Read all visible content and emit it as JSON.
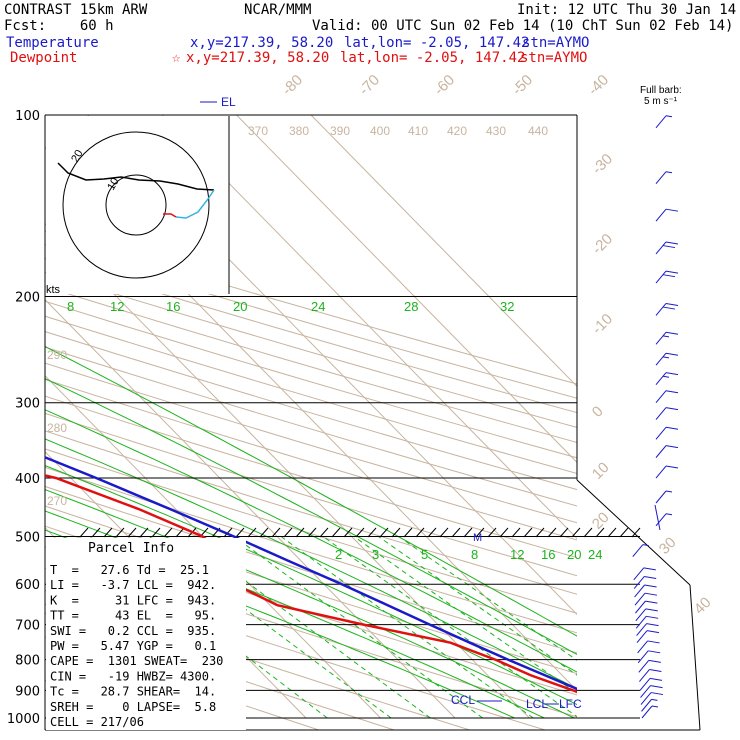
{
  "header": {
    "line1_left": "CONTRAST 15km ARW",
    "line1_center": "NCAR/MMM",
    "line1_right": "Init: 12 UTC Thu 30 Jan 14",
    "line2_left": "Fcst:    60 h",
    "line2_right": "Valid: 00 UTC Sun 02 Feb 14 (10 ChT Sun 02 Feb 14)",
    "temp_label": "Temperature",
    "temp_xy": "x,y=217.39, 58.20",
    "temp_latlon": "lat,lon= -2.05, 147.42",
    "temp_stn": "stn=AYMO",
    "dew_label": "Dewpoint",
    "dew_xy": "x,y=217.39, 58.20",
    "dew_latlon": "lat,lon= -2.05, 147.42",
    "dew_stn": "stn=AYMO"
  },
  "colors": {
    "temperature": "#1a1ac8",
    "dewpoint": "#e01010",
    "isotherm": "#c8b4a0",
    "mixing_ratio": "#1cb41c",
    "wind": "#1a1ac8"
  },
  "barb_legend": {
    "line1": "Full barb:",
    "line2": "5 m s⁻¹"
  },
  "hodograph": {
    "units_label": "kts",
    "ring_labels": [
      "20",
      "10"
    ]
  },
  "levels_labels": {
    "el": "EL",
    "ccl": "CCL",
    "lcl": "LCL",
    "lfc": "LFC",
    "m": "M"
  },
  "parcel_info": {
    "title": "Parcel Info",
    "rows": [
      "T  =   27.6 Td =  25.1",
      "LI =   -3.7 LCL =  942.",
      "K  =     31 LFC =  943.",
      "TT =     43 EL  =   95.",
      "SWI =   0.2 CCL =  935.",
      "PW =   5.47 YGP =   0.1",
      "CAPE =  1301 SWEAT=  230",
      "CIN =   -19 HWBZ= 4300.",
      "Tc =   28.7 SHEAR=  14.",
      "SREH =    0 LAPSE=  5.8",
      "CELL = 217/06"
    ]
  },
  "chart_data": {
    "type": "line",
    "subtype": "skew-T log-P",
    "pressure_levels": [
      100,
      200,
      300,
      400,
      500,
      600,
      700,
      800,
      900,
      1000
    ],
    "isotherm_labels": [
      -80,
      -70,
      -60,
      -50,
      -40,
      -30,
      -20,
      -10,
      0,
      10,
      20,
      30,
      40
    ],
    "mixing_ratio_upper_labels": [
      8,
      12,
      16,
      20,
      24,
      28,
      32
    ],
    "mixing_ratio_lower_labels": [
      2,
      3,
      5,
      8,
      12,
      16,
      20,
      24
    ],
    "theta_labels": [
      290,
      280,
      270
    ],
    "theta_e_labels": [
      370,
      380,
      390,
      400,
      410,
      420,
      430,
      440
    ],
    "series": [
      {
        "name": "Temperature",
        "p": [
          1000,
          975,
          950,
          925,
          900,
          850,
          800,
          750,
          700,
          650,
          600,
          550,
          500,
          450,
          400,
          350,
          300,
          250,
          200,
          150,
          100
        ],
        "t": [
          28.2,
          25.1,
          23.6,
          22.0,
          20.5,
          17.7,
          14.8,
          11.9,
          8.9,
          5.8,
          2.4,
          -1.6,
          -5.8,
          -10.8,
          -16.6,
          -23.6,
          -32.0,
          -42.0,
          -54.0,
          -70.0,
          -86.0
        ]
      },
      {
        "name": "Dewpoint",
        "p": [
          1000,
          975,
          950,
          925,
          900,
          850,
          800,
          750,
          700,
          650,
          600,
          550,
          500,
          450,
          400,
          370,
          350,
          330,
          300,
          250,
          200,
          150,
          110,
          100
        ],
        "t": [
          25.3,
          24.8,
          22.6,
          21.0,
          19.5,
          15.8,
          13.1,
          9.3,
          0.0,
          -9.0,
          -12.0,
          -9.0,
          -10.0,
          -15.0,
          -22.0,
          -31.0,
          -35.0,
          -35.0,
          -36.0,
          -45.0,
          -56.0,
          -72.0,
          -86.0,
          -84.0
        ]
      }
    ],
    "wind_barbs": {
      "p": [
        105,
        130,
        150,
        170,
        190,
        215,
        240,
        260,
        280,
        300,
        320,
        345,
        370,
        400,
        440,
        480,
        540,
        590,
        610,
        630,
        650,
        670,
        690,
        710,
        730,
        750,
        780,
        810,
        840,
        870,
        900,
        925,
        950,
        975,
        1000
      ],
      "speed_ms": [
        5,
        5,
        10,
        20,
        20,
        20,
        15,
        15,
        15,
        10,
        10,
        10,
        10,
        10,
        5,
        5,
        5,
        10,
        10,
        10,
        10,
        10,
        10,
        10,
        10,
        10,
        10,
        10,
        10,
        10,
        10,
        10,
        10,
        5,
        5
      ],
      "dir_deg": [
        60,
        60,
        80,
        90,
        90,
        90,
        90,
        95,
        100,
        100,
        105,
        110,
        115,
        120,
        130,
        150,
        180,
        95,
        95,
        95,
        95,
        95,
        95,
        95,
        95,
        100,
        100,
        100,
        100,
        100,
        100,
        105,
        105,
        110,
        110
      ]
    }
  }
}
